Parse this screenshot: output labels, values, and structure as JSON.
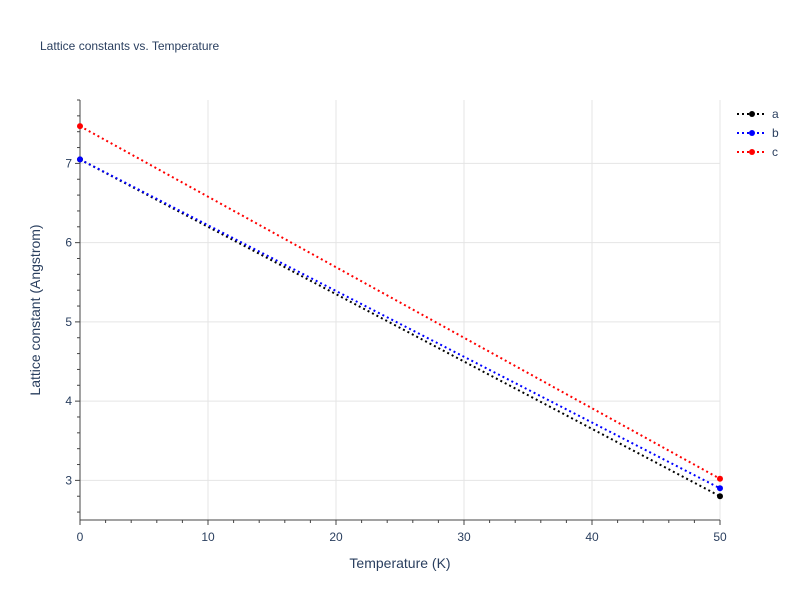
{
  "chart_data": {
    "type": "line",
    "title": "Lattice constants vs. Temperature",
    "xlabel": "Temperature (K)",
    "ylabel": "Lattice constant (Angstrom)",
    "xlim": [
      0,
      50
    ],
    "ylim": [
      2.5,
      7.8
    ],
    "x_ticks": [
      0,
      10,
      20,
      30,
      40,
      50
    ],
    "y_ticks": [
      3,
      4,
      5,
      6,
      7
    ],
    "grid": true,
    "legend_position": "top-right",
    "series": [
      {
        "name": "a",
        "color": "#000000",
        "line_style": "dotted",
        "marker": "circle",
        "x": [
          0,
          50
        ],
        "y": [
          7.05,
          2.8
        ]
      },
      {
        "name": "b",
        "color": "#0000ff",
        "line_style": "dotted",
        "marker": "circle",
        "x": [
          0,
          50
        ],
        "y": [
          7.05,
          2.9
        ]
      },
      {
        "name": "c",
        "color": "#ff0000",
        "line_style": "dotted",
        "marker": "circle",
        "x": [
          0,
          50
        ],
        "y": [
          7.47,
          3.02
        ]
      }
    ]
  }
}
